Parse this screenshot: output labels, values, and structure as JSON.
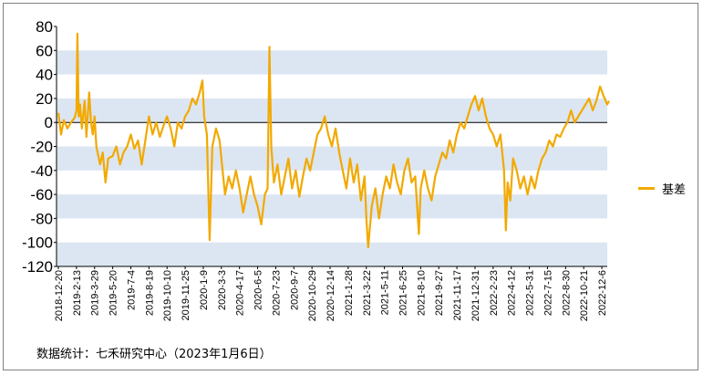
{
  "chart_data": {
    "type": "line",
    "title": "",
    "xlabel": "",
    "ylabel": "",
    "ylim": [
      -120,
      80
    ],
    "yticks": [
      80,
      60,
      40,
      20,
      0,
      -20,
      -40,
      -60,
      -80,
      -100,
      -120
    ],
    "xticks": [
      "2018-12-20",
      "2019-2-13",
      "2019-3-29",
      "2019-5-20",
      "2019-7-4",
      "2019-8-19",
      "2019-10-10",
      "2019-11-25",
      "2020-1-9",
      "2020-3-3",
      "2020-4-17",
      "2020-6-5",
      "2020-7-23",
      "2020-9-7",
      "2020-10-29",
      "2020-12-14",
      "2021-1-28",
      "2021-3-22",
      "2021-5-11",
      "2021-6-25",
      "2021-8-10",
      "2021-9-27",
      "2021-11-17",
      "2021-12-31",
      "2022-2-23",
      "2022-4-12",
      "2022-5-31",
      "2022-7-15",
      "2022-8-30",
      "2022-10-21",
      "2022-12-6"
    ],
    "band_color": "#dce6f2",
    "legend_position": "right",
    "series": [
      {
        "name": "基差",
        "color": "#f2a900",
        "points": [
          [
            0,
            8
          ],
          [
            0.15,
            -10
          ],
          [
            0.3,
            2
          ],
          [
            0.5,
            -5
          ],
          [
            0.7,
            0
          ],
          [
            0.9,
            4
          ],
          [
            1.0,
            10
          ],
          [
            1.05,
            74
          ],
          [
            1.12,
            5
          ],
          [
            1.2,
            15
          ],
          [
            1.3,
            -5
          ],
          [
            1.45,
            18
          ],
          [
            1.55,
            -12
          ],
          [
            1.7,
            25
          ],
          [
            1.8,
            0
          ],
          [
            1.9,
            -10
          ],
          [
            2.0,
            5
          ],
          [
            2.1,
            -20
          ],
          [
            2.3,
            -35
          ],
          [
            2.45,
            -25
          ],
          [
            2.6,
            -50
          ],
          [
            2.75,
            -30
          ],
          [
            3.0,
            -28
          ],
          [
            3.2,
            -20
          ],
          [
            3.4,
            -35
          ],
          [
            3.6,
            -25
          ],
          [
            3.8,
            -20
          ],
          [
            4.0,
            -10
          ],
          [
            4.2,
            -22
          ],
          [
            4.4,
            -15
          ],
          [
            4.6,
            -35
          ],
          [
            4.8,
            -15
          ],
          [
            5.0,
            5
          ],
          [
            5.2,
            -10
          ],
          [
            5.4,
            0
          ],
          [
            5.6,
            -12
          ],
          [
            5.8,
            -3
          ],
          [
            6.0,
            5
          ],
          [
            6.2,
            -5
          ],
          [
            6.4,
            -20
          ],
          [
            6.6,
            0
          ],
          [
            6.8,
            -5
          ],
          [
            7.0,
            5
          ],
          [
            7.2,
            10
          ],
          [
            7.4,
            20
          ],
          [
            7.6,
            15
          ],
          [
            7.8,
            25
          ],
          [
            7.95,
            35
          ],
          [
            8.05,
            5
          ],
          [
            8.2,
            -10
          ],
          [
            8.35,
            -98
          ],
          [
            8.5,
            -20
          ],
          [
            8.7,
            -5
          ],
          [
            8.9,
            -15
          ],
          [
            9.0,
            -30
          ],
          [
            9.2,
            -60
          ],
          [
            9.4,
            -45
          ],
          [
            9.6,
            -55
          ],
          [
            9.8,
            -40
          ],
          [
            10.0,
            -55
          ],
          [
            10.2,
            -75
          ],
          [
            10.4,
            -60
          ],
          [
            10.6,
            -45
          ],
          [
            10.8,
            -60
          ],
          [
            11.0,
            -70
          ],
          [
            11.2,
            -85
          ],
          [
            11.4,
            -60
          ],
          [
            11.55,
            -55
          ],
          [
            11.65,
            63
          ],
          [
            11.75,
            -20
          ],
          [
            11.9,
            -50
          ],
          [
            12.1,
            -35
          ],
          [
            12.3,
            -60
          ],
          [
            12.5,
            -45
          ],
          [
            12.7,
            -30
          ],
          [
            12.9,
            -55
          ],
          [
            13.1,
            -40
          ],
          [
            13.3,
            -62
          ],
          [
            13.5,
            -45
          ],
          [
            13.7,
            -30
          ],
          [
            13.9,
            -40
          ],
          [
            14.1,
            -25
          ],
          [
            14.3,
            -10
          ],
          [
            14.5,
            -5
          ],
          [
            14.7,
            5
          ],
          [
            14.9,
            -10
          ],
          [
            15.1,
            -20
          ],
          [
            15.3,
            -5
          ],
          [
            15.5,
            -25
          ],
          [
            15.7,
            -40
          ],
          [
            15.9,
            -55
          ],
          [
            16.1,
            -30
          ],
          [
            16.3,
            -50
          ],
          [
            16.5,
            -35
          ],
          [
            16.7,
            -65
          ],
          [
            16.9,
            -45
          ],
          [
            17.0,
            -80
          ],
          [
            17.1,
            -104
          ],
          [
            17.3,
            -70
          ],
          [
            17.5,
            -55
          ],
          [
            17.7,
            -80
          ],
          [
            17.9,
            -60
          ],
          [
            18.1,
            -45
          ],
          [
            18.3,
            -55
          ],
          [
            18.5,
            -35
          ],
          [
            18.7,
            -50
          ],
          [
            18.9,
            -60
          ],
          [
            19.1,
            -40
          ],
          [
            19.3,
            -30
          ],
          [
            19.5,
            -50
          ],
          [
            19.7,
            -45
          ],
          [
            19.9,
            -93
          ],
          [
            20.0,
            -55
          ],
          [
            20.2,
            -40
          ],
          [
            20.4,
            -55
          ],
          [
            20.6,
            -65
          ],
          [
            20.8,
            -45
          ],
          [
            21.0,
            -35
          ],
          [
            21.2,
            -25
          ],
          [
            21.4,
            -30
          ],
          [
            21.6,
            -15
          ],
          [
            21.8,
            -25
          ],
          [
            22.0,
            -10
          ],
          [
            22.2,
            0
          ],
          [
            22.4,
            -5
          ],
          [
            22.6,
            5
          ],
          [
            22.8,
            15
          ],
          [
            23.0,
            22
          ],
          [
            23.2,
            10
          ],
          [
            23.4,
            20
          ],
          [
            23.6,
            5
          ],
          [
            23.8,
            -5
          ],
          [
            24.0,
            -10
          ],
          [
            24.2,
            -20
          ],
          [
            24.4,
            -10
          ],
          [
            24.6,
            -40
          ],
          [
            24.7,
            -90
          ],
          [
            24.8,
            -50
          ],
          [
            24.95,
            -65
          ],
          [
            25.1,
            -30
          ],
          [
            25.3,
            -40
          ],
          [
            25.5,
            -55
          ],
          [
            25.7,
            -45
          ],
          [
            25.9,
            -60
          ],
          [
            26.1,
            -45
          ],
          [
            26.3,
            -55
          ],
          [
            26.5,
            -40
          ],
          [
            26.7,
            -30
          ],
          [
            26.9,
            -25
          ],
          [
            27.1,
            -15
          ],
          [
            27.3,
            -20
          ],
          [
            27.5,
            -10
          ],
          [
            27.7,
            -12
          ],
          [
            27.9,
            -5
          ],
          [
            28.1,
            0
          ],
          [
            28.3,
            10
          ],
          [
            28.5,
            0
          ],
          [
            28.7,
            5
          ],
          [
            28.9,
            10
          ],
          [
            29.1,
            15
          ],
          [
            29.3,
            20
          ],
          [
            29.5,
            10
          ],
          [
            29.7,
            18
          ],
          [
            29.9,
            30
          ],
          [
            30.1,
            22
          ],
          [
            30.3,
            15
          ],
          [
            30.4,
            18
          ]
        ]
      }
    ]
  },
  "source_text": "数据统计：七禾研究中心（2023年1月6日）"
}
